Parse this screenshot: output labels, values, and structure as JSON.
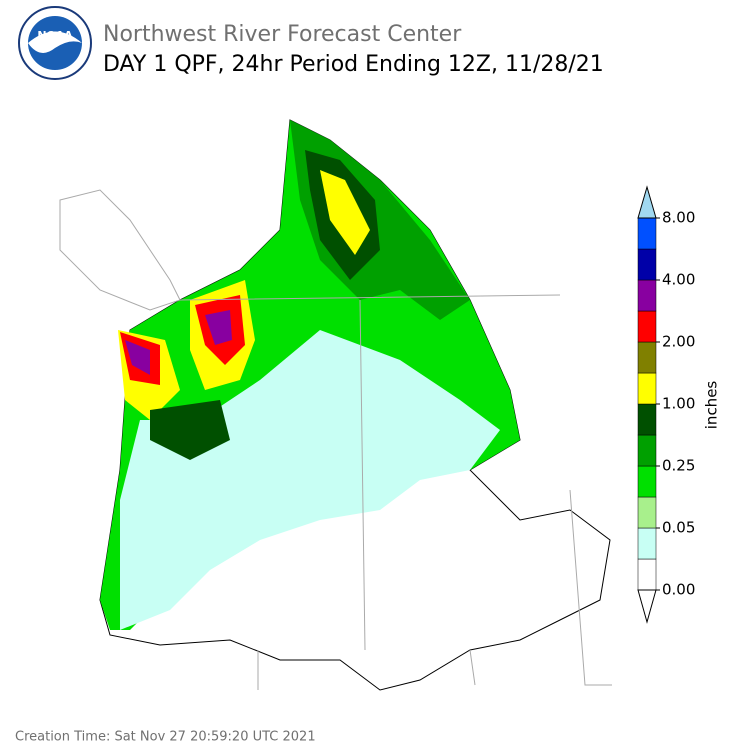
{
  "header": {
    "title": "Northwest River Forecast Center",
    "subtitle": "DAY 1 QPF, 24hr Period Ending 12Z, 11/28/21"
  },
  "colorbar": {
    "label": "inches",
    "colors": [
      "#ffffff",
      "#c8fff4",
      "#a8f08c",
      "#00e000",
      "#00a000",
      "#005000",
      "#ffff00",
      "#808000",
      "#ff0000",
      "#8800a0",
      "#0000a8",
      "#0050ff"
    ],
    "over_color": "#a0d8f0",
    "ticks": [
      {
        "value": 0,
        "label": "0.00"
      },
      {
        "value": 0.05,
        "label": "0.05"
      },
      {
        "value": 0.25,
        "label": "0.25"
      },
      {
        "value": 1,
        "label": "1.00"
      },
      {
        "value": 2,
        "label": "2.00"
      },
      {
        "value": 4,
        "label": "4.00"
      },
      {
        "value": 8,
        "label": "8.00"
      }
    ]
  },
  "footer": {
    "creation_time": "Creation Time: Sat Nov 27 20:59:20 UTC 2021"
  }
}
